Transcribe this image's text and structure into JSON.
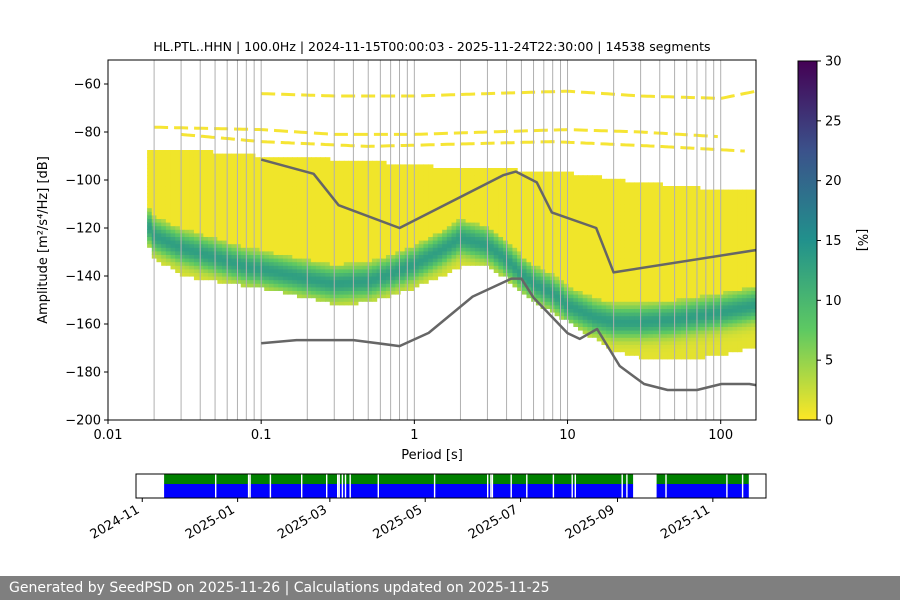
{
  "footer": {
    "text": "Generated by SeedPSD on 2025-11-26 | Calculations updated on 2025-11-25"
  },
  "colors": {
    "nlnm_nhnm": "#666666",
    "coverage_green": "#008000",
    "coverage_blue": "#0000ff",
    "grid": "#b0b0b0",
    "footer_bg": "#7f7f7f"
  },
  "chart_data": [
    {
      "type": "heatmap",
      "title": "HL.PTL..HHN | 100.0Hz | 2024-11-15T00:00:03 - 2025-11-24T22:30:00 | 14538 segments",
      "xlabel": "Period [s]",
      "ylabel": "Amplitude [m²/s⁴/Hz] [dB]",
      "xscale": "log",
      "xlim": [
        0.01,
        170
      ],
      "ylim": [
        -200,
        -50
      ],
      "x_ticks": [
        0.01,
        0.1,
        1,
        10,
        100
      ],
      "x_tick_labels": [
        "0.01",
        "0.1",
        "1",
        "10",
        "100"
      ],
      "y_ticks": [
        -200,
        -180,
        -160,
        -140,
        -120,
        -100,
        -80,
        -60
      ],
      "y_tick_labels": [
        "−200",
        "−180",
        "−160",
        "−140",
        "−120",
        "−100",
        "−80",
        "−60"
      ],
      "grid": true,
      "colorbar": {
        "label": "[%]",
        "range": [
          0,
          30
        ],
        "ticks": [
          0,
          5,
          10,
          15,
          20,
          25,
          30
        ],
        "colormap": "viridis"
      },
      "psd_mode": {
        "period": [
          0.018,
          0.02,
          0.03,
          0.05,
          0.08,
          0.1,
          0.2,
          0.3,
          0.5,
          0.7,
          1,
          1.5,
          2,
          3,
          4,
          5,
          6,
          8,
          10,
          15,
          20,
          30,
          50,
          100,
          170
        ],
        "db": [
          -118,
          -123,
          -128,
          -132,
          -136,
          -137,
          -141,
          -143,
          -142,
          -139,
          -135,
          -129,
          -124,
          -127,
          -133,
          -139,
          -143,
          -147,
          -152,
          -157,
          -159,
          -159,
          -158,
          -155,
          -152
        ]
      },
      "psd_lower": {
        "period": [
          0.018,
          0.02,
          0.03,
          0.05,
          0.1,
          0.2,
          0.3,
          0.5,
          0.7,
          1,
          1.5,
          2,
          3,
          4,
          5,
          7,
          10,
          15,
          20,
          30,
          50,
          100,
          170
        ],
        "db": [
          -127,
          -132,
          -140,
          -142,
          -145,
          -149,
          -152,
          -151,
          -148,
          -145,
          -140,
          -136,
          -136,
          -141,
          -147,
          -153,
          -159,
          -166,
          -171,
          -174,
          -175,
          -173,
          -169
        ]
      },
      "psd_upper": {
        "period": [
          0.018,
          0.03,
          0.1,
          0.5,
          1,
          3,
          10,
          30,
          100,
          170
        ],
        "db": [
          -87,
          -87,
          -90,
          -92,
          -94,
          -95,
          -97,
          -101,
          -104,
          -104
        ]
      },
      "psd_outliers": [
        {
          "period": [
            0.02,
            0.1,
            0.3,
            1,
            3,
            10,
            30,
            100
          ],
          "db": [
            -78,
            -79,
            -81,
            -81,
            -80,
            -79,
            -80,
            -82
          ]
        },
        {
          "period": [
            0.1,
            0.3,
            1,
            3,
            10,
            30,
            100,
            170
          ],
          "db": [
            -64,
            -65,
            -65,
            -64,
            -63,
            -65,
            -66,
            -63
          ]
        },
        {
          "period": [
            0.03,
            0.1,
            0.5,
            2,
            8,
            40,
            150
          ],
          "db": [
            -81,
            -84,
            -86,
            -85,
            -84,
            -86,
            -88
          ]
        }
      ],
      "nhnm": {
        "period": [
          0.1,
          0.22,
          0.32,
          0.8,
          3.8,
          4.6,
          6.3,
          7.9,
          15.4,
          20,
          354.8
        ],
        "db": [
          -91.5,
          -97.4,
          -110.5,
          -120,
          -98,
          -96.5,
          -101,
          -113.5,
          -120,
          -138.5,
          -126
        ]
      },
      "nlnm": {
        "period": [
          0.1,
          0.17,
          0.4,
          0.8,
          1.24,
          2.4,
          4.3,
          5,
          6,
          10,
          12,
          15.6,
          21.9,
          31.6,
          45,
          70,
          101,
          154,
          170
        ],
        "db": [
          -168,
          -166.7,
          -166.7,
          -169.2,
          -163.7,
          -148.6,
          -141.1,
          -141.1,
          -149,
          -163.8,
          -166.2,
          -162.1,
          -177.5,
          -185,
          -187.5,
          -187.5,
          -185,
          -185,
          -185.5
        ]
      }
    },
    {
      "type": "timeline",
      "x_tick_labels": [
        "2024-11",
        "2025-01",
        "2025-03",
        "2025-05",
        "2025-07",
        "2025-09",
        "2025-11"
      ],
      "x_tick_dates": [
        "2024-11-01",
        "2025-01-01",
        "2025-03-01",
        "2025-05-01",
        "2025-07-01",
        "2025-09-01",
        "2025-11-01"
      ],
      "xlim": [
        "2024-10-28",
        "2025-12-05"
      ],
      "coverage_intervals": [
        [
          "2024-11-15",
          "2025-09-11"
        ],
        [
          "2025-09-26",
          "2025-11-24"
        ]
      ],
      "gaps": [
        "2024-12-18",
        "2025-01-08",
        "2025-01-09",
        "2025-01-22",
        "2025-02-11",
        "2025-02-27",
        "2025-03-06",
        "2025-03-07",
        "2025-03-09",
        "2025-03-11",
        "2025-03-14",
        "2025-04-01",
        "2025-05-07",
        "2025-06-10",
        "2025-06-12",
        "2025-06-13",
        "2025-06-25",
        "2025-07-05",
        "2025-07-22",
        "2025-08-03",
        "2025-08-05",
        "2025-09-04",
        "2025-09-07",
        "2025-10-02",
        "2025-11-10",
        "2025-11-20"
      ]
    }
  ]
}
